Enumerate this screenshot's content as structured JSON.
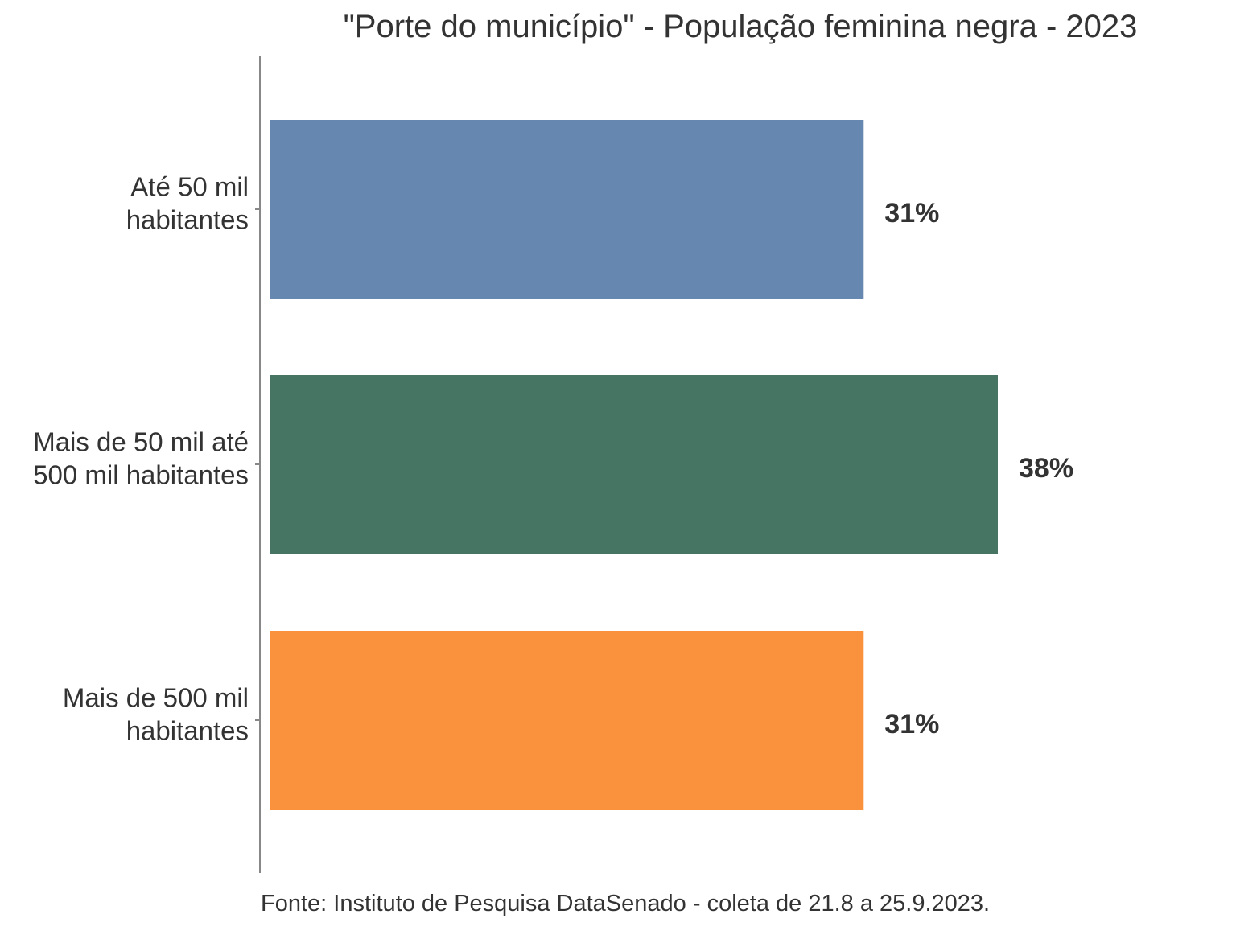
{
  "chart_data": {
    "type": "bar",
    "orientation": "horizontal",
    "title": "\"Porte do município\" - População feminina negra - 2023",
    "caption": "Fonte: Instituto de Pesquisa DataSenado - coleta de 21.8 a 25.9.2023.",
    "categories": [
      [
        "Até 50 mil",
        "habitantes"
      ],
      [
        "Mais de 50 mil até",
        "500 mil habitantes"
      ],
      [
        "Mais de 500 mil",
        "habitantes"
      ]
    ],
    "values": [
      31,
      38,
      31
    ],
    "value_labels": [
      "31%",
      "38%",
      "31%"
    ],
    "colors": [
      "#6688b0",
      "#467564",
      "#fa913c"
    ],
    "xlim": [
      0,
      40
    ],
    "grid": false,
    "legend": "none"
  }
}
